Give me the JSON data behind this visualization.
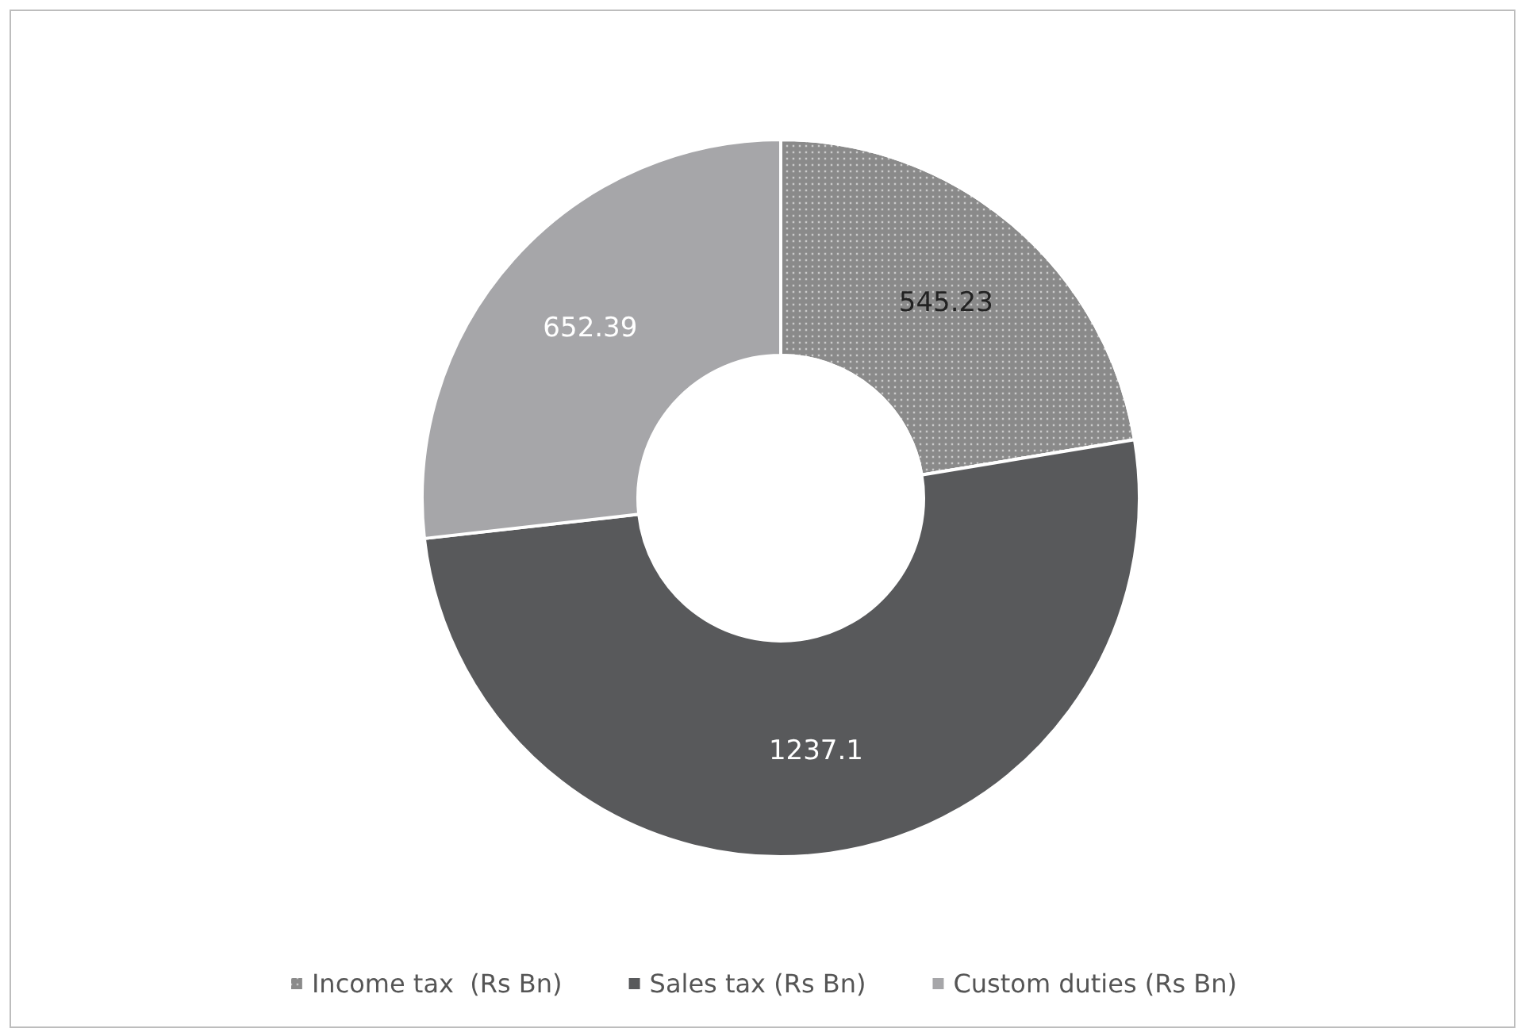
{
  "chart_data": {
    "type": "donut",
    "categories": [
      "Income tax  (Rs Bn)",
      "Sales tax (Rs Bn)",
      "Custom duties (Rs Bn)"
    ],
    "values": [
      545.23,
      1237.1,
      652.39
    ],
    "colors": [
      "#8a8a8a",
      "#58595b",
      "#a6a6a9"
    ],
    "data_labels": true,
    "legend": "bottom"
  }
}
